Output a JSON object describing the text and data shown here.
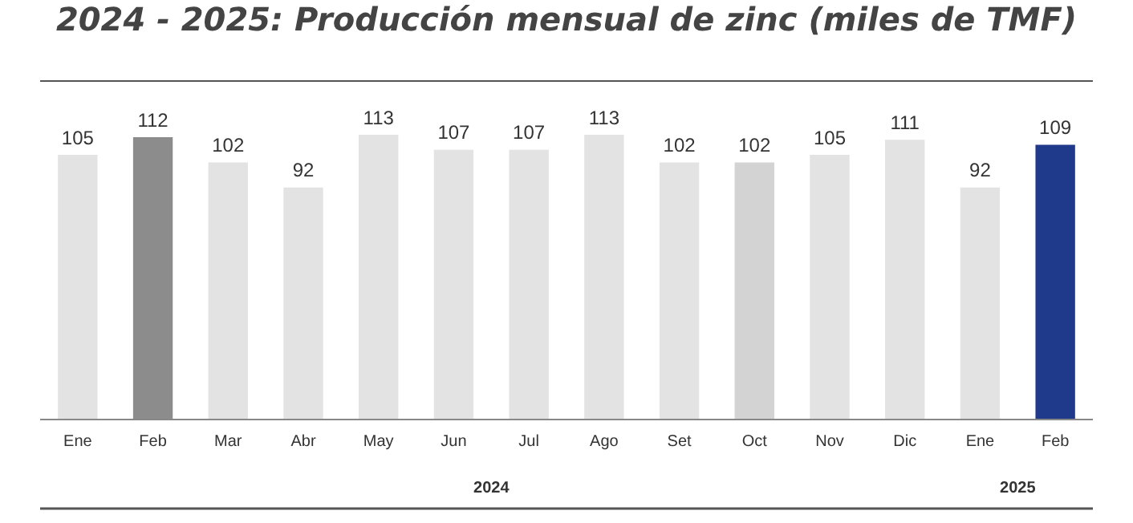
{
  "chart_data": {
    "type": "bar",
    "title": "2024 - 2025: Producción mensual de zinc (miles de TMF)",
    "categories": [
      "Ene",
      "Feb",
      "Mar",
      "Abr",
      "May",
      "Jun",
      "Jul",
      "Ago",
      "Set",
      "Oct",
      "Nov",
      "Dic",
      "Ene",
      "Feb"
    ],
    "values": [
      105,
      112,
      102,
      92,
      113,
      107,
      107,
      113,
      102,
      102,
      105,
      111,
      92,
      109
    ],
    "colors": [
      "#e3e3e3",
      "#8c8c8c",
      "#e3e3e3",
      "#e3e3e3",
      "#e3e3e3",
      "#e3e3e3",
      "#e3e3e3",
      "#e3e3e3",
      "#e3e3e3",
      "#d3d3d3",
      "#e3e3e3",
      "#e3e3e3",
      "#e3e3e3",
      "#1f3a8a"
    ],
    "tick_labels": "x",
    "data_labels": true,
    "legend": false,
    "annotations": [
      "2024",
      "2025"
    ]
  }
}
